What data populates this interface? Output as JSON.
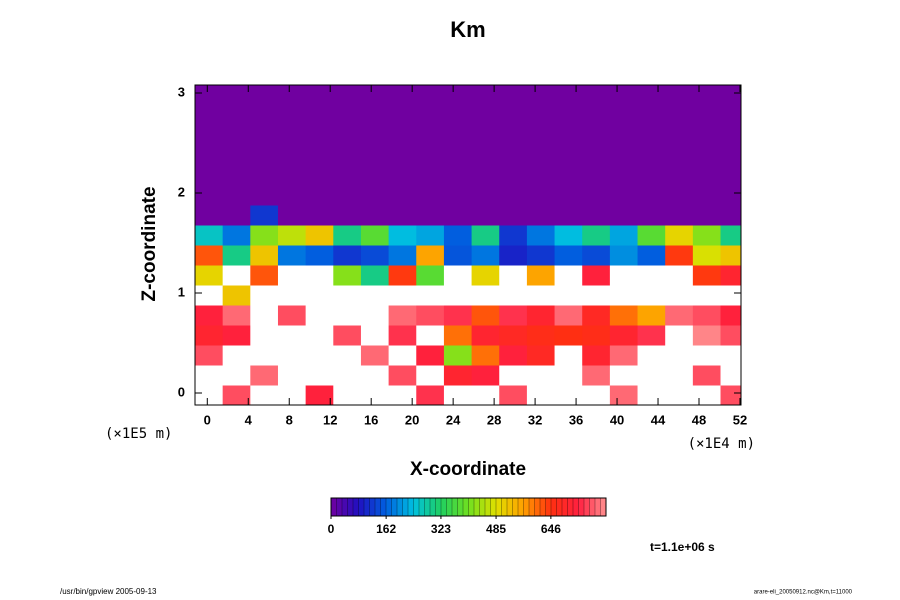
{
  "chart_data": {
    "type": "heatmap",
    "title": "Km",
    "x_label": "X-coordinate",
    "y_label": "Z-coordinate",
    "x_unit": "(×1E4 m)",
    "y_unit": "(×1E5 m)",
    "annotation": "t=1.1e+06 s",
    "footer_left": "/usr/bin/gpview 2005-09-13",
    "footer_right": "arare-eli_20050912.nc@Km,t=11000",
    "xlim": [
      -1.2,
      52.1
    ],
    "ylim": [
      -0.12,
      3.08
    ],
    "xticks": [
      0,
      4,
      8,
      12,
      16,
      20,
      24,
      28,
      32,
      36,
      40,
      44,
      48,
      52
    ],
    "yticks": [
      0,
      1,
      2,
      3
    ],
    "clim": [
      0,
      808
    ],
    "cticks": [
      0,
      162,
      323,
      485,
      646
    ],
    "colors": [
      "#7000a0",
      "#2010c0",
      "#0060e0",
      "#00c0e0",
      "#20d060",
      "#70e020",
      "#e0e000",
      "#ffa000",
      "#ff3010",
      "#ff2040",
      "#ff9090"
    ],
    "over_color": "#ffffff",
    "xbins": [
      -1.2,
      1.5,
      4.2,
      6.9,
      9.6,
      12.3,
      15,
      17.7,
      20.4,
      23.1,
      25.8,
      28.5,
      31.2,
      33.9,
      36.6,
      39.3,
      42,
      44.7,
      47.4,
      50.1,
      52.1
    ],
    "ybins": [
      -0.12,
      0.08,
      0.28,
      0.48,
      0.68,
      0.88,
      1.08,
      1.28,
      1.48,
      1.68,
      1.88,
      2.08,
      2.28,
      2.48,
      2.68,
      2.88,
      3.08
    ],
    "values": [
      [
        850,
        760,
        850,
        850,
        720,
        850,
        850,
        850,
        740,
        850,
        850,
        760,
        850,
        850,
        850,
        780,
        850,
        850,
        850,
        760
      ],
      [
        850,
        850,
        780,
        850,
        850,
        850,
        850,
        760,
        850,
        700,
        720,
        850,
        850,
        850,
        780,
        850,
        850,
        850,
        760,
        850
      ],
      [
        760,
        850,
        850,
        850,
        850,
        850,
        780,
        850,
        720,
        420,
        600,
        720,
        680,
        850,
        700,
        780,
        850,
        850,
        850,
        850
      ],
      [
        700,
        720,
        850,
        850,
        850,
        760,
        850,
        740,
        850,
        600,
        700,
        680,
        660,
        650,
        660,
        700,
        740,
        850,
        800,
        760
      ],
      [
        720,
        780,
        850,
        760,
        850,
        850,
        850,
        780,
        760,
        740,
        620,
        740,
        700,
        780,
        680,
        600,
        560,
        780,
        760,
        720
      ],
      [
        820,
        520,
        850,
        850,
        850,
        850,
        850,
        850,
        850,
        850,
        850,
        850,
        850,
        850,
        850,
        850,
        850,
        850,
        850,
        820
      ],
      [
        500,
        850,
        620,
        850,
        850,
        420,
        300,
        640,
        380,
        850,
        500,
        850,
        560,
        850,
        720,
        850,
        850,
        850,
        640,
        700
      ],
      [
        620,
        300,
        520,
        180,
        160,
        120,
        140,
        180,
        560,
        150,
        180,
        100,
        120,
        160,
        140,
        200,
        160,
        640,
        480,
        520
      ],
      [
        260,
        180,
        420,
        460,
        520,
        300,
        380,
        240,
        220,
        160,
        300,
        120,
        180,
        240,
        300,
        220,
        380,
        500,
        420,
        300
      ],
      [
        0,
        0,
        120,
        0,
        0,
        0,
        0,
        0,
        0,
        0,
        0,
        0,
        0,
        0,
        0,
        0,
        0,
        0,
        0,
        0
      ],
      [
        0,
        0,
        0,
        0,
        0,
        0,
        0,
        0,
        0,
        0,
        0,
        0,
        0,
        0,
        0,
        0,
        0,
        0,
        0,
        0
      ],
      [
        0,
        0,
        0,
        0,
        0,
        0,
        0,
        0,
        0,
        0,
        0,
        0,
        0,
        0,
        0,
        0,
        0,
        0,
        0,
        0
      ],
      [
        0,
        0,
        0,
        0,
        0,
        0,
        0,
        0,
        0,
        0,
        0,
        0,
        0,
        0,
        0,
        0,
        0,
        0,
        0,
        0
      ],
      [
        0,
        0,
        0,
        0,
        0,
        0,
        0,
        0,
        0,
        0,
        0,
        0,
        0,
        0,
        0,
        0,
        0,
        0,
        0,
        0
      ],
      [
        0,
        0,
        0,
        0,
        0,
        0,
        0,
        0,
        0,
        0,
        0,
        0,
        0,
        0,
        0,
        0,
        0,
        0,
        0,
        0
      ],
      [
        0,
        0,
        0,
        0,
        0,
        0,
        0,
        0,
        0,
        0,
        0,
        0,
        0,
        0,
        0,
        0,
        0,
        0,
        0,
        0
      ]
    ]
  }
}
